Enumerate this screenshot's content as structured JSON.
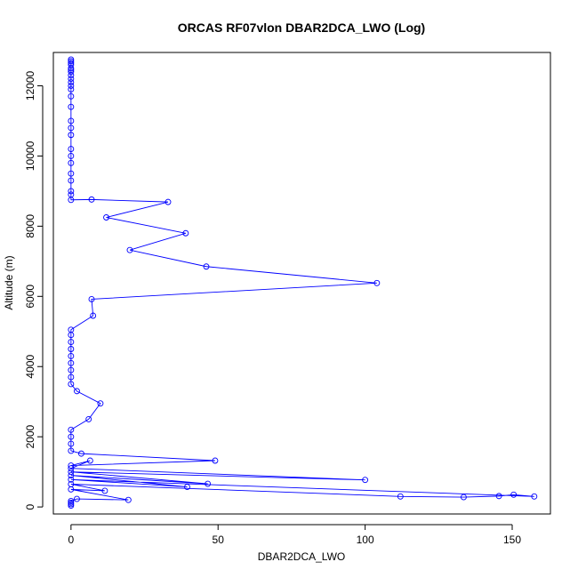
{
  "chart_data": {
    "type": "line",
    "title": "ORCAS RF07vlon DBAR2DCA_LWO (Log)",
    "xlabel": "DBAR2DCA_LWO",
    "ylabel": "Altitude (m)",
    "xlim": [
      -6,
      163
    ],
    "ylim": [
      -200,
      12950
    ],
    "xticks": [
      0,
      50,
      100,
      150
    ],
    "yticks": [
      0,
      2000,
      4000,
      6000,
      8000,
      10000,
      12000
    ],
    "grid": false,
    "series_color": "#0000ff",
    "marker": "open-circle",
    "series": [
      {
        "points": [
          [
            0,
            12750
          ],
          [
            0,
            12700
          ],
          [
            0,
            12650
          ],
          [
            0,
            12600
          ],
          [
            0,
            12500
          ],
          [
            0,
            12450
          ],
          [
            0,
            12400
          ],
          [
            0,
            12300
          ],
          [
            0,
            12200
          ],
          [
            0,
            12100
          ],
          [
            0,
            12000
          ],
          [
            0,
            11900
          ],
          [
            0,
            11700
          ],
          [
            0,
            11400
          ],
          [
            0,
            11000
          ],
          [
            0,
            10800
          ],
          [
            0,
            10600
          ],
          [
            0,
            10200
          ],
          [
            0,
            10000
          ],
          [
            0,
            9800
          ],
          [
            0,
            9500
          ],
          [
            0,
            9300
          ],
          [
            0,
            9000
          ],
          [
            0,
            8900
          ],
          [
            0,
            8750
          ],
          [
            7,
            8760
          ],
          [
            33,
            8690
          ],
          [
            12,
            8250
          ],
          [
            39,
            7800
          ],
          [
            20,
            7320
          ],
          [
            46,
            6850
          ],
          [
            104,
            6380
          ],
          [
            7,
            5920
          ],
          [
            7.5,
            5450
          ],
          [
            0,
            5050
          ],
          [
            0,
            4900
          ],
          [
            0,
            4700
          ],
          [
            0,
            4500
          ],
          [
            0,
            4300
          ],
          [
            0,
            4100
          ],
          [
            0,
            3900
          ],
          [
            0,
            3700
          ],
          [
            0,
            3500
          ],
          [
            2,
            3300
          ],
          [
            10,
            2950
          ],
          [
            6,
            2500
          ],
          [
            0,
            2200
          ],
          [
            0,
            2000
          ],
          [
            0,
            1800
          ],
          [
            0,
            1600
          ],
          [
            3.5,
            1520
          ],
          [
            49,
            1320
          ],
          [
            0,
            1180
          ],
          [
            6.5,
            1320
          ],
          [
            0,
            1100
          ],
          [
            100,
            770
          ],
          [
            0,
            1000
          ],
          [
            46.5,
            660
          ],
          [
            0,
            900
          ],
          [
            39.5,
            570
          ],
          [
            0,
            780
          ],
          [
            157.5,
            300
          ],
          [
            150.5,
            350
          ],
          [
            145.5,
            310
          ],
          [
            133.5,
            280
          ],
          [
            112,
            300
          ],
          [
            0,
            650
          ],
          [
            11.5,
            460
          ],
          [
            0,
            500
          ],
          [
            19.5,
            200
          ],
          [
            2,
            230
          ],
          [
            0,
            170
          ],
          [
            0,
            120
          ],
          [
            0,
            80
          ],
          [
            0,
            40
          ]
        ]
      }
    ]
  }
}
